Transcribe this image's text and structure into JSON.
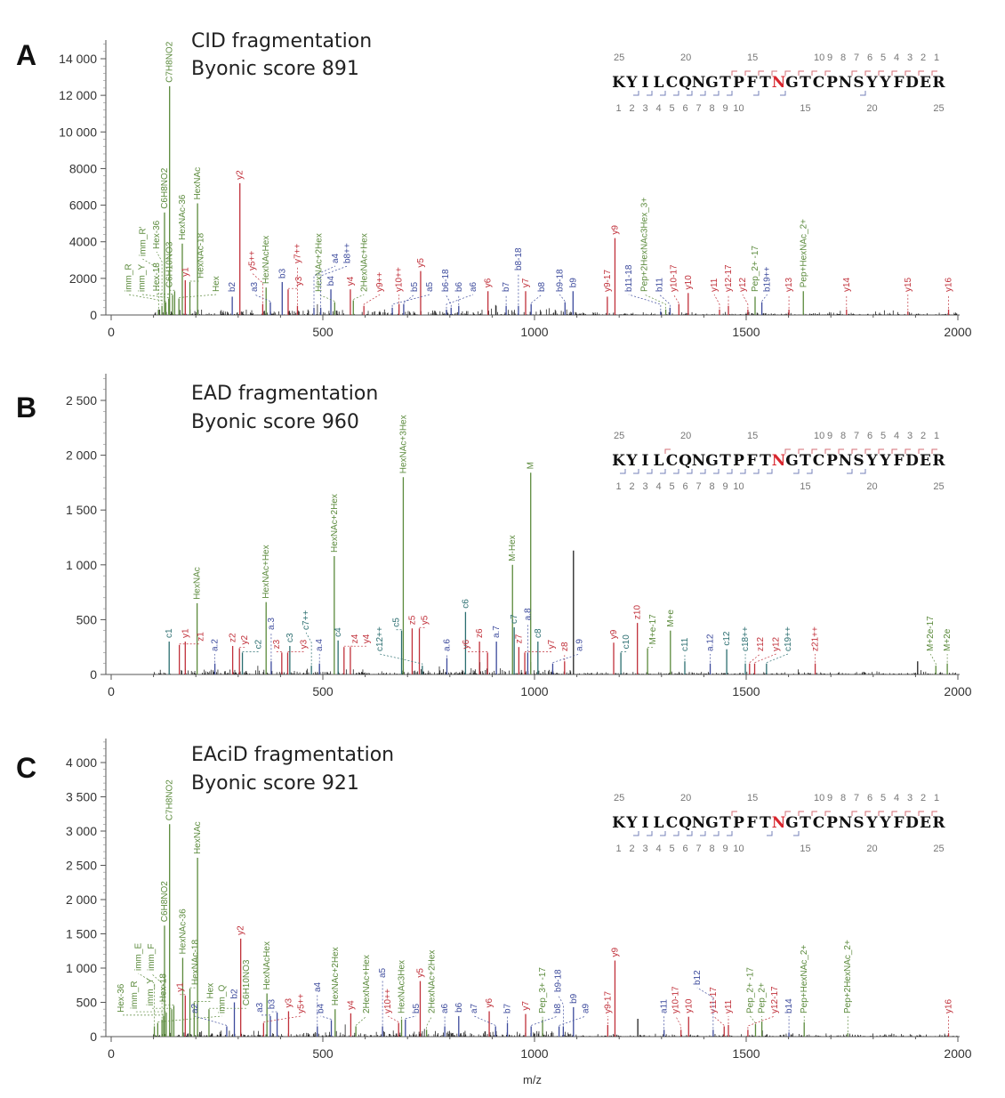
{
  "colors": {
    "glycan": "#5b8a3c",
    "y_ion": "#c0303a",
    "b_ion": "#3c4a9c",
    "c_ion": "#2b6e70",
    "unassigned": "#111111",
    "glyco_site": "#d8262e"
  },
  "xlabel": "m/z",
  "chart_data": [
    {
      "panel": "A",
      "type": "bar",
      "title": "CID fragmentation",
      "subtitle": "Byonic score 891",
      "xlim": [
        0,
        2000
      ],
      "ylim": [
        0,
        14000
      ],
      "xtick_labels": [
        "0",
        "500",
        "1000",
        "1500",
        "2000"
      ],
      "ytick_values": [
        0,
        2000,
        4000,
        6000,
        8000,
        10000,
        12000,
        14000
      ],
      "ytick_labels": [
        "0",
        "2000",
        "4000",
        "6000",
        "8000",
        "10 000",
        "12 000",
        "14 000"
      ],
      "sequence": "KYILCQNGTPFTNGTCPNSYYFDER",
      "glyco_site": 13,
      "seq_top_numbers": [
        "25",
        "20",
        "15",
        "10",
        "9",
        "8",
        "7",
        "6",
        "5",
        "4",
        "3",
        "2",
        "1"
      ],
      "seq_bottom_numbers": [
        "1",
        "2",
        "3",
        "4",
        "5",
        "6",
        "7",
        "8",
        "9",
        "10",
        "15",
        "20",
        "25"
      ],
      "y_coverage": [
        1,
        2,
        3,
        4,
        5,
        6,
        7,
        9,
        10,
        11,
        12,
        13,
        14,
        15,
        16
      ],
      "b_coverage": [
        2,
        3,
        4,
        5,
        6,
        7,
        8,
        9,
        11,
        13,
        19
      ],
      "peaks": [
        [
          112,
          300,
          "imm_R'",
          "g"
        ],
        [
          120,
          500,
          "Hex-36",
          "g"
        ],
        [
          129,
          700,
          "imm_R",
          "g"
        ],
        [
          136,
          900,
          "imm_Y",
          "g"
        ],
        [
          145,
          1100,
          "Hex-18",
          "g"
        ],
        [
          126,
          5600,
          "C6H8NO2",
          "g"
        ],
        [
          138,
          12500,
          "C7H8NO2",
          "g"
        ],
        [
          150,
          1300,
          "C6H10NO3",
          "g"
        ],
        [
          160,
          900,
          "Hex",
          "g"
        ],
        [
          168,
          3900,
          "HexNAc-36",
          "g"
        ],
        [
          175,
          1900,
          "y1",
          "y"
        ],
        [
          186,
          1800,
          "HexNAc-18",
          "g"
        ],
        [
          204,
          6100,
          "HexNAc",
          "g"
        ],
        [
          286,
          1000,
          "b2",
          "b"
        ],
        [
          304,
          7200,
          "y2",
          "y"
        ],
        [
          358,
          600,
          "y5++",
          "y"
        ],
        [
          366,
          1500,
          "HexNAcHex",
          "g"
        ],
        [
          376,
          700,
          "a3",
          "b"
        ],
        [
          404,
          1800,
          "b3",
          "b"
        ],
        [
          418,
          1400,
          "y3",
          "y"
        ],
        [
          440,
          500,
          "y7++",
          "y"
        ],
        [
          479,
          400,
          "a4",
          "b"
        ],
        [
          495,
          400,
          "b8++",
          "b"
        ],
        [
          519,
          1400,
          "b4",
          "b"
        ],
        [
          528,
          700,
          "HexNAc+2Hex",
          "g"
        ],
        [
          565,
          1400,
          "y4",
          "y"
        ],
        [
          572,
          800,
          "2HexNAc+Hex",
          "g"
        ],
        [
          597,
          500,
          "y9++",
          "y"
        ],
        [
          664,
          400,
          "a5",
          "b"
        ],
        [
          680,
          600,
          "y10++",
          "y"
        ],
        [
          691,
          600,
          "b5",
          "b"
        ],
        [
          731,
          2400,
          "y5",
          "y"
        ],
        [
          792,
          300,
          "a6",
          "b"
        ],
        [
          803,
          400,
          "b6-18",
          "b"
        ],
        [
          821,
          500,
          "b6",
          "b"
        ],
        [
          890,
          1300,
          "y6",
          "y"
        ],
        [
          933,
          500,
          "b7",
          "b"
        ],
        [
          962,
          500,
          "b8-18",
          "b"
        ],
        [
          979,
          1300,
          "y7",
          "y"
        ],
        [
          992,
          600,
          "b8",
          "b"
        ],
        [
          1072,
          700,
          "b9-18",
          "b"
        ],
        [
          1091,
          1300,
          "b9",
          "b"
        ],
        [
          1172,
          1000,
          "y9-17",
          "y"
        ],
        [
          1190,
          4200,
          "y9",
          "y"
        ],
        [
          1298,
          200,
          "b11-18",
          "b"
        ],
        [
          1310,
          300,
          "Pep+2HexNAc3Hex_3+",
          "g"
        ],
        [
          1320,
          400,
          "b11",
          "b"
        ],
        [
          1341,
          600,
          "y10-17",
          "y"
        ],
        [
          1363,
          1200,
          "y10",
          "y"
        ],
        [
          1437,
          300,
          "y11",
          "y"
        ],
        [
          1458,
          500,
          "y12-17",
          "y"
        ],
        [
          1504,
          300,
          "y12",
          "y"
        ],
        [
          1521,
          1000,
          "Pep_2+ -17",
          "g"
        ],
        [
          1537,
          700,
          "b19++",
          "b"
        ],
        [
          1601,
          300,
          "y13",
          "y"
        ],
        [
          1635,
          1300,
          "Pep+HexNAc_2+",
          "g"
        ],
        [
          1737,
          300,
          "y14",
          "y"
        ],
        [
          1882,
          200,
          "y15",
          "y"
        ],
        [
          1978,
          300,
          "y16",
          "y"
        ]
      ]
    },
    {
      "panel": "B",
      "type": "bar",
      "title": "EAD fragmentation",
      "subtitle": "Byonic score 960",
      "xlim": [
        0,
        2000
      ],
      "ylim": [
        0,
        2500
      ],
      "xtick_labels": [
        "0",
        "500",
        "1000",
        "1500",
        "2000"
      ],
      "ytick_values": [
        0,
        500,
        1000,
        1500,
        2000,
        2500
      ],
      "ytick_labels": [
        "0",
        "500",
        "1 000",
        "1 500",
        "2 000",
        "2 500"
      ],
      "sequence": "KYILCQNGTPFTNGTCPNSYYFDER",
      "glyco_site": 13,
      "seq_top_numbers": [
        "25",
        "20",
        "15",
        "10",
        "9",
        "8",
        "7",
        "6",
        "5",
        "4",
        "3",
        "2",
        "1"
      ],
      "seq_bottom_numbers": [
        "1",
        "2",
        "3",
        "4",
        "5",
        "6",
        "7",
        "8",
        "9",
        "10",
        "15",
        "20",
        "25"
      ],
      "y_coverage": [
        1,
        2,
        3,
        4,
        5,
        6,
        7,
        8,
        9,
        10,
        11,
        12,
        21
      ],
      "b_coverage": [
        1,
        2,
        3,
        4,
        5,
        6,
        7,
        8,
        9,
        10,
        11,
        12,
        14,
        15,
        18,
        19
      ],
      "peaks": [
        [
          137,
          300,
          "c1",
          "c"
        ],
        [
          161,
          270,
          "z1",
          "y"
        ],
        [
          175,
          300,
          "y1",
          "y"
        ],
        [
          203,
          650,
          "HexNAc",
          "g"
        ],
        [
          245,
          100,
          "a.2",
          "b"
        ],
        [
          287,
          260,
          "z2",
          "y"
        ],
        [
          303,
          240,
          "y2",
          "y"
        ],
        [
          310,
          200,
          "c2",
          "c"
        ],
        [
          366,
          660,
          "HexNAc+Hex",
          "g"
        ],
        [
          378,
          120,
          "a.3",
          "b"
        ],
        [
          403,
          200,
          "z3",
          "y"
        ],
        [
          417,
          200,
          "y3",
          "y"
        ],
        [
          422,
          260,
          "c3",
          "c"
        ],
        [
          473,
          80,
          "c7++",
          "c"
        ],
        [
          492,
          100,
          "a.4",
          "b"
        ],
        [
          527,
          1080,
          "HexNAc+2Hex",
          "g"
        ],
        [
          536,
          310,
          "c4",
          "c"
        ],
        [
          550,
          250,
          "z4",
          "y"
        ],
        [
          565,
          250,
          "y4",
          "y"
        ],
        [
          686,
          400,
          "c5",
          "c"
        ],
        [
          690,
          1800,
          "HexNAc+3Hex",
          "g"
        ],
        [
          711,
          420,
          "z5",
          "y"
        ],
        [
          728,
          420,
          "y5",
          "y"
        ],
        [
          735,
          80,
          "c12++",
          "c"
        ],
        [
          793,
          150,
          "a.6",
          "b"
        ],
        [
          837,
          570,
          "c6",
          "c"
        ],
        [
          870,
          300,
          "z6",
          "y"
        ],
        [
          889,
          200,
          "y6",
          "y"
        ],
        [
          910,
          300,
          "a.7",
          "b"
        ],
        [
          948,
          1000,
          "M-Hex",
          "g"
        ],
        [
          952,
          430,
          "c7",
          "c"
        ],
        [
          963,
          250,
          "z7",
          "y"
        ],
        [
          977,
          200,
          "y7",
          "y"
        ],
        [
          984,
          200,
          "a.8",
          "b"
        ],
        [
          991,
          1840,
          "M",
          "g"
        ],
        [
          1008,
          300,
          "c8",
          "c"
        ],
        [
          1043,
          100,
          "a.9",
          "b"
        ],
        [
          1071,
          120,
          "z8",
          "y"
        ],
        [
          1092,
          1130,
          "",
          "n"
        ],
        [
          1187,
          290,
          "y9",
          "y"
        ],
        [
          1204,
          200,
          "c10",
          "c"
        ],
        [
          1243,
          470,
          "z10",
          "y"
        ],
        [
          1267,
          240,
          "M+e-17",
          "g"
        ],
        [
          1321,
          400,
          "M+e",
          "g"
        ],
        [
          1355,
          120,
          "c11",
          "c"
        ],
        [
          1415,
          100,
          "a.12",
          "b"
        ],
        [
          1454,
          230,
          "c12",
          "c"
        ],
        [
          1498,
          100,
          "c18++",
          "c"
        ],
        [
          1508,
          100,
          "z12",
          "y"
        ],
        [
          1520,
          100,
          "y12",
          "y"
        ],
        [
          1548,
          100,
          "c19++",
          "c"
        ],
        [
          1663,
          100,
          "z21++",
          "y"
        ],
        [
          1905,
          120,
          "",
          "n"
        ],
        [
          1948,
          80,
          "M+2e-17",
          "g"
        ],
        [
          1975,
          100,
          "M+2e",
          "g"
        ]
      ]
    },
    {
      "panel": "C",
      "type": "bar",
      "title": "EAciD fragmentation",
      "subtitle": "Byonic score 921",
      "xlim": [
        0,
        2000
      ],
      "ylim": [
        0,
        4000
      ],
      "xtick_labels": [
        "0",
        "500",
        "1000",
        "1500",
        "2000"
      ],
      "ytick_values": [
        0,
        500,
        1000,
        1500,
        2000,
        2500,
        3000,
        3500,
        4000
      ],
      "ytick_labels": [
        "0",
        "500",
        "1 000",
        "1 500",
        "2 000",
        "2 500",
        "3 000",
        "3 500",
        "4 000"
      ],
      "sequence": "KYILCQNGTPFTNGTCPNSYYFDER",
      "glyco_site": 13,
      "seq_top_numbers": [
        "25",
        "20",
        "15",
        "10",
        "9",
        "8",
        "7",
        "6",
        "5",
        "4",
        "3",
        "2",
        "1"
      ],
      "seq_bottom_numbers": [
        "1",
        "2",
        "3",
        "4",
        "5",
        "6",
        "7",
        "8",
        "9",
        "10",
        "15",
        "20",
        "25"
      ],
      "y_coverage": [
        1,
        2,
        3,
        4,
        5,
        6,
        7,
        9,
        10,
        11,
        12,
        16
      ],
      "b_coverage": [
        2,
        3,
        4,
        5,
        6,
        7,
        8,
        9,
        12,
        14
      ],
      "peaks": [
        [
          102,
          150,
          "imm_E",
          "g"
        ],
        [
          110,
          200,
          "imm_Q",
          "g"
        ],
        [
          120,
          250,
          "imm_F",
          "g"
        ],
        [
          124,
          300,
          "Hex-36",
          "g"
        ],
        [
          130,
          350,
          "imm_R",
          "g"
        ],
        [
          126,
          1620,
          "C6H8NO2",
          "g"
        ],
        [
          138,
          3100,
          "C7H8NO2",
          "g"
        ],
        [
          143,
          400,
          "imm_Y",
          "g"
        ],
        [
          148,
          450,
          "Hex-18",
          "g"
        ],
        [
          169,
          1150,
          "HexNAc-36",
          "g"
        ],
        [
          175,
          600,
          "y1",
          "y"
        ],
        [
          186,
          700,
          "HexNAc-18",
          "g"
        ],
        [
          204,
          2610,
          "HexNAc",
          "g"
        ],
        [
          196,
          500,
          "Hex",
          "g"
        ],
        [
          231,
          400,
          "C6H10NO3",
          "g"
        ],
        [
          273,
          150,
          "a2",
          "b"
        ],
        [
          291,
          500,
          "b2",
          "b"
        ],
        [
          306,
          1430,
          "y2",
          "y"
        ],
        [
          360,
          200,
          "y5++",
          "y"
        ],
        [
          368,
          630,
          "HexNAcHex",
          "g"
        ],
        [
          376,
          300,
          "a3",
          "b"
        ],
        [
          392,
          350,
          "b3",
          "b"
        ],
        [
          419,
          370,
          "y3",
          "y"
        ],
        [
          487,
          150,
          "a4",
          "b"
        ],
        [
          520,
          240,
          "b4",
          "b"
        ],
        [
          529,
          400,
          "HexNAc+2Hex",
          "g"
        ],
        [
          566,
          340,
          "y4",
          "y"
        ],
        [
          578,
          150,
          "2HexNAc+Hex",
          "g"
        ],
        [
          641,
          150,
          "a5",
          "b"
        ],
        [
          679,
          200,
          "y10++",
          "y"
        ],
        [
          686,
          250,
          "HexNAc3Hex",
          "g"
        ],
        [
          695,
          250,
          "b5",
          "b"
        ],
        [
          730,
          810,
          "y5",
          "y"
        ],
        [
          745,
          100,
          "2HexNAc+2Hex",
          "g"
        ],
        [
          788,
          150,
          "a6",
          "b"
        ],
        [
          821,
          300,
          "b6",
          "b"
        ],
        [
          893,
          370,
          "y6",
          "y"
        ],
        [
          908,
          150,
          "a7",
          "b"
        ],
        [
          936,
          200,
          "b7",
          "b"
        ],
        [
          979,
          330,
          "y7",
          "y"
        ],
        [
          992,
          150,
          "b8",
          "b"
        ],
        [
          1019,
          250,
          "Pep_3+ -17",
          "g"
        ],
        [
          1058,
          150,
          "a9",
          "b"
        ],
        [
          1068,
          150,
          "b9-18",
          "b"
        ],
        [
          1092,
          430,
          "b9",
          "b"
        ],
        [
          1173,
          170,
          "y9-17",
          "y"
        ],
        [
          1190,
          1110,
          "y9",
          "y"
        ],
        [
          1244,
          260,
          "",
          "n"
        ],
        [
          1306,
          100,
          "a11",
          "b"
        ],
        [
          1346,
          100,
          "y10-17",
          "y"
        ],
        [
          1364,
          290,
          "y10",
          "y"
        ],
        [
          1422,
          100,
          "b12",
          "b"
        ],
        [
          1448,
          150,
          "y11-17",
          "y"
        ],
        [
          1458,
          170,
          "y11",
          "y"
        ],
        [
          1504,
          100,
          "y12-17",
          "y"
        ],
        [
          1522,
          185,
          "Pep_2+ -17",
          "g"
        ],
        [
          1537,
          220,
          "Pep_2+",
          "g"
        ],
        [
          1601,
          60,
          "b14",
          "b"
        ],
        [
          1637,
          210,
          "Pep+HexNAc_2+",
          "g"
        ],
        [
          1740,
          50,
          "Pep+2HexNAc_2+",
          "g"
        ],
        [
          1978,
          50,
          "y16",
          "y"
        ]
      ]
    }
  ]
}
